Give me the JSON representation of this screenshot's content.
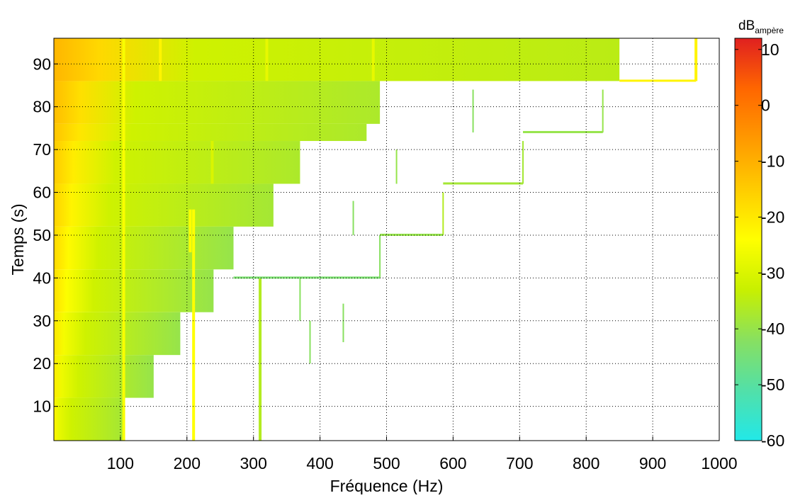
{
  "chart_data": {
    "type": "heatmap",
    "title": "",
    "xlabel": "Fréquence (Hz)",
    "ylabel": "Temps (s)",
    "xlim": [
      0,
      1000
    ],
    "ylim": [
      2,
      96
    ],
    "xticks": [
      100,
      200,
      300,
      400,
      500,
      600,
      700,
      800,
      900,
      1000
    ],
    "yticks": [
      10,
      20,
      30,
      40,
      50,
      60,
      70,
      80,
      90
    ],
    "grid": true,
    "colorbar": {
      "title": "dB",
      "subscript": "ampère",
      "range": [
        -60,
        12
      ],
      "ticks": [
        10,
        0,
        -10,
        -20,
        -30,
        -40,
        -50,
        -60
      ],
      "colormap": [
        "#22e8e8",
        "#52e0a8",
        "#88e060",
        "#c8f000",
        "#ffff00",
        "#ffcc00",
        "#ff9900",
        "#ff6600",
        "#e02020"
      ]
    },
    "steps": [
      {
        "t0": 2,
        "t1": 12,
        "fmax": 105,
        "level": -38
      },
      {
        "t0": 12,
        "t1": 22,
        "fmax": 150,
        "level": -40
      },
      {
        "t0": 22,
        "t1": 32,
        "fmax": 190,
        "level": -40
      },
      {
        "t0": 32,
        "t1": 42,
        "fmax": 240,
        "level": -40
      },
      {
        "t0": 42,
        "t1": 52,
        "fmax": 270,
        "level": -40
      },
      {
        "t0": 52,
        "t1": 62,
        "fmax": 330,
        "level": -38
      },
      {
        "t0": 62,
        "t1": 72,
        "fmax": 370,
        "level": -37
      },
      {
        "t0": 72,
        "t1": 76,
        "fmax": 470,
        "level": -37
      },
      {
        "t0": 76,
        "t1": 86,
        "fmax": 490,
        "level": -37
      },
      {
        "t0": 86,
        "t1": 96,
        "fmax": 850,
        "level": -35
      }
    ],
    "fundamental_lines": [
      {
        "f": 105,
        "t0": 2,
        "t1": 96,
        "level": -25
      },
      {
        "f": 210,
        "t0": 2,
        "t1": 56,
        "level": -24
      },
      {
        "f": 310,
        "t0": 2,
        "t1": 40,
        "level": -36
      },
      {
        "f": 205,
        "t0": 46,
        "t1": 56,
        "level": -24
      },
      {
        "f": 160,
        "t0": 86,
        "t1": 96,
        "level": -22
      },
      {
        "f": 238,
        "t0": 62,
        "t1": 72,
        "level": -30
      },
      {
        "f": 320,
        "t0": 86,
        "t1": 96,
        "level": -28
      },
      {
        "f": 480,
        "t0": 86,
        "t1": 96,
        "level": -28
      },
      {
        "f": 965,
        "t0": 86,
        "t1": 96,
        "level": -22
      }
    ],
    "harmonic_traces": [
      {
        "f": 370,
        "t0": 30,
        "t1": 40,
        "level": -42
      },
      {
        "f": 385,
        "t0": 20,
        "t1": 30,
        "level": -42
      },
      {
        "f": 435,
        "t0": 25,
        "t1": 34,
        "level": -42
      },
      {
        "f": 490,
        "t0": 40,
        "t1": 50,
        "level": -42
      },
      {
        "f": 585,
        "t0": 50,
        "t1": 60,
        "level": -36
      },
      {
        "f": 705,
        "t0": 62,
        "t1": 72,
        "level": -38
      },
      {
        "f": 825,
        "t0": 74,
        "t1": 84,
        "level": -40
      },
      {
        "f": 450,
        "t0": 50,
        "t1": 58,
        "level": -42
      },
      {
        "f": 630,
        "t0": 74,
        "t1": 84,
        "level": -42
      },
      {
        "f": 515,
        "t0": 62,
        "t1": 70,
        "level": -40
      }
    ],
    "sweep_segments": [
      {
        "f0": 490,
        "f1": 585,
        "t": 50,
        "level": -40
      },
      {
        "f0": 585,
        "f1": 705,
        "t": 62,
        "level": -38
      },
      {
        "f0": 705,
        "f1": 825,
        "t": 74,
        "level": -40
      },
      {
        "f0": 850,
        "f1": 965,
        "t": 86,
        "level": -22
      },
      {
        "f0": 270,
        "f1": 490,
        "t": 40,
        "level": -44
      }
    ]
  }
}
